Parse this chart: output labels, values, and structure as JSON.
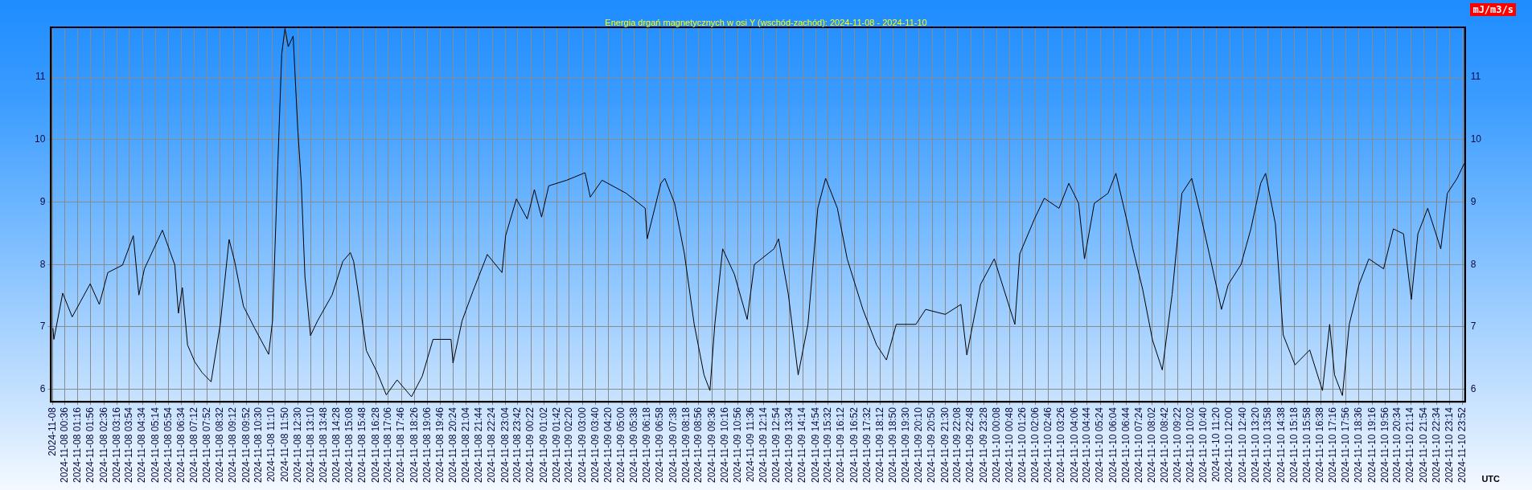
{
  "chart_data": {
    "type": "line",
    "title": "Energia drgań magnetycznych w osi Y (wschód-zachód): 2024-11-08 - 2024-11-10",
    "y2label": "mJ/m3/s",
    "xlabel": "UTC",
    "x": [
      "2024-11-08T00:00",
      "2024-11-08T00:03",
      "2024-11-08T00:30",
      "2024-11-08T00:59",
      "2024-11-08T01:54",
      "2024-11-08T02:22",
      "2024-11-08T02:48",
      "2024-11-08T03:33",
      "2024-11-08T04:06",
      "2024-11-08T04:23",
      "2024-11-08T04:40",
      "2024-11-08T05:35",
      "2024-11-08T06:13",
      "2024-11-08T06:24",
      "2024-11-08T06:36",
      "2024-11-08T06:52",
      "2024-11-08T07:14",
      "2024-11-08T07:36",
      "2024-11-08T08:04",
      "2024-11-08T08:32",
      "2024-11-08T08:59",
      "2024-11-08T09:16",
      "2024-11-08T09:43",
      "2024-11-08T10:17",
      "2024-11-08T11:00",
      "2024-11-08T11:12",
      "2024-11-08T11:28",
      "2024-11-08T11:40",
      "2024-11-08T11:50",
      "2024-11-08T12:00",
      "2024-11-08T12:15",
      "2024-11-08T12:29",
      "2024-11-08T12:40",
      "2024-11-08T12:51",
      "2024-11-08T13:08",
      "2024-11-08T13:30",
      "2024-11-08T14:14",
      "2024-11-08T14:47",
      "2024-11-08T15:10",
      "2024-11-08T15:20",
      "2024-11-08T15:37",
      "2024-11-08T15:59",
      "2024-11-08T16:32",
      "2024-11-08T17:00",
      "2024-11-08T17:33",
      "2024-11-08T18:17",
      "2024-11-08T18:50",
      "2024-11-08T19:23",
      "2024-11-08T20:18",
      "2024-11-08T20:24",
      "2024-11-08T20:52",
      "2024-11-08T21:25",
      "2024-11-08T22:09",
      "2024-11-08T22:54",
      "2024-11-08T23:05",
      "2024-11-08T23:38",
      "2024-11-09T00:11",
      "2024-11-09T00:33",
      "2024-11-09T00:55",
      "2024-11-09T01:17",
      "2024-11-09T02:12",
      "2024-11-09T03:08",
      "2024-11-09T03:24",
      "2024-11-09T04:00",
      "2024-11-09T05:14",
      "2024-11-09T06:12",
      "2024-11-09T06:18",
      "2024-11-09T07:00",
      "2024-11-09T07:12",
      "2024-11-09T07:42",
      "2024-11-09T08:12",
      "2024-11-09T08:42",
      "2024-11-09T09:12",
      "2024-11-09T09:30",
      "2024-11-09T09:45",
      "2024-11-09T10:09",
      "2024-11-09T10:45",
      "2024-11-09T11:24",
      "2024-11-09T11:46",
      "2024-11-09T12:46",
      "2024-11-09T13:00",
      "2024-11-09T13:30",
      "2024-11-09T14:00",
      "2024-11-09T14:30",
      "2024-11-09T15:00",
      "2024-11-09T15:24",
      "2024-11-09T16:00",
      "2024-11-09T16:30",
      "2024-11-09T17:18",
      "2024-11-09T18:00",
      "2024-11-09T18:30",
      "2024-11-09T19:00",
      "2024-11-09T20:00",
      "2024-11-09T20:30",
      "2024-11-09T21:30",
      "2024-11-09T22:18",
      "2024-11-09T22:36",
      "2024-11-09T23:18",
      "2024-11-10T00:00",
      "2024-11-10T01:03",
      "2024-11-10T01:18",
      "2024-11-10T02:03",
      "2024-11-10T02:33",
      "2024-11-10T03:18",
      "2024-11-10T03:48",
      "2024-11-10T04:18",
      "2024-11-10T04:36",
      "2024-11-10T05:06",
      "2024-11-10T05:48",
      "2024-11-10T06:12",
      "2024-11-10T06:48",
      "2024-11-10T07:04",
      "2024-11-10T07:34",
      "2024-11-10T08:04",
      "2024-11-10T08:34",
      "2024-11-10T09:04",
      "2024-11-10T09:34",
      "2024-11-10T10:04",
      "2024-11-10T10:34",
      "2024-11-10T11:05",
      "2024-11-10T11:35",
      "2024-11-10T11:56",
      "2024-11-10T12:35",
      "2024-11-10T13:05",
      "2024-11-10T13:35",
      "2024-11-10T13:50",
      "2024-11-10T14:20",
      "2024-11-10T14:44",
      "2024-11-10T15:20",
      "2024-11-10T16:05",
      "2024-11-10T16:44",
      "2024-11-10T17:06",
      "2024-11-10T17:21",
      "2024-11-10T17:45",
      "2024-11-10T18:06",
      "2024-11-10T18:36",
      "2024-11-10T19:06",
      "2024-11-10T19:51",
      "2024-11-10T20:21",
      "2024-11-10T20:52",
      "2024-11-10T21:16",
      "2024-11-10T21:36",
      "2024-11-10T22:06",
      "2024-11-10T22:46",
      "2024-11-10T23:06",
      "2024-11-10T23:36",
      "2024-11-10T23:58"
    ],
    "series": [
      {
        "color": "#000000",
        "values": [
          6.98,
          6.8,
          7.54,
          7.16,
          7.69,
          7.36,
          7.87,
          7.99,
          8.46,
          7.51,
          7.93,
          8.55,
          7.99,
          7.22,
          7.63,
          6.71,
          6.44,
          6.27,
          6.12,
          7.04,
          8.4,
          8.05,
          7.33,
          6.98,
          6.56,
          7.1,
          9.59,
          11.37,
          11.78,
          11.49,
          11.66,
          10.18,
          9.29,
          7.81,
          6.86,
          7.1,
          7.51,
          8.05,
          8.19,
          8.05,
          7.45,
          6.62,
          6.27,
          5.91,
          6.15,
          5.88,
          6.21,
          6.8,
          6.8,
          6.42,
          7.1,
          7.57,
          8.16,
          7.87,
          8.46,
          9.05,
          8.73,
          9.2,
          8.76,
          9.26,
          9.35,
          9.47,
          9.08,
          9.35,
          9.14,
          8.9,
          8.41,
          9.3,
          9.38,
          8.98,
          8.17,
          7.04,
          6.23,
          5.98,
          7.04,
          8.25,
          7.84,
          7.12,
          8.0,
          8.25,
          8.41,
          7.52,
          6.23,
          7.04,
          8.9,
          9.38,
          8.9,
          8.09,
          7.28,
          6.71,
          6.47,
          7.04,
          7.04,
          7.28,
          7.2,
          7.36,
          6.55,
          7.68,
          8.09,
          7.04,
          8.17,
          8.73,
          9.06,
          8.9,
          9.3,
          8.98,
          8.09,
          8.98,
          9.14,
          9.46,
          8.65,
          8.25,
          7.6,
          6.79,
          6.31,
          7.52,
          9.14,
          9.38,
          8.73,
          8.0,
          7.28,
          7.68,
          8.0,
          8.57,
          9.3,
          9.46,
          8.65,
          6.87,
          6.39,
          6.63,
          5.98,
          7.04,
          6.23,
          5.9,
          7.04,
          7.68,
          8.09,
          7.93,
          8.57,
          8.49,
          7.44,
          8.49,
          8.9,
          8.25,
          9.14,
          9.38,
          9.62
        ]
      }
    ],
    "xlim": [
      "2024-11-07T23:54",
      "2024-11-11T00:00"
    ],
    "xticks": [
      {
        "value": "2024-11-08T00:00",
        "label": "2024-11-08"
      },
      {
        "value": "2024-11-08T00:36",
        "label": "2024-11-08 00:36"
      },
      {
        "value": "2024-11-08T01:16",
        "label": "2024-11-08 01:16"
      },
      {
        "value": "2024-11-08T01:56",
        "label": "2024-11-08 01:56"
      },
      {
        "value": "2024-11-08T02:36",
        "label": "2024-11-08 02:36"
      },
      {
        "value": "2024-11-08T03:16",
        "label": "2024-11-08 03:16"
      },
      {
        "value": "2024-11-08T03:54",
        "label": "2024-11-08 03:54"
      },
      {
        "value": "2024-11-08T04:34",
        "label": "2024-11-08 04:34"
      },
      {
        "value": "2024-11-08T05:14",
        "label": "2024-11-08 05:14"
      },
      {
        "value": "2024-11-08T05:54",
        "label": "2024-11-08 05:54"
      },
      {
        "value": "2024-11-08T06:34",
        "label": "2024-11-08 06:34"
      },
      {
        "value": "2024-11-08T07:12",
        "label": "2024-11-08 07:12"
      },
      {
        "value": "2024-11-08T07:52",
        "label": "2024-11-08 07:52"
      },
      {
        "value": "2024-11-08T08:32",
        "label": "2024-11-08 08:32"
      },
      {
        "value": "2024-11-08T09:12",
        "label": "2024-11-08 09:12"
      },
      {
        "value": "2024-11-08T09:52",
        "label": "2024-11-08 09:52"
      },
      {
        "value": "2024-11-08T10:30",
        "label": "2024-11-08 10:30"
      },
      {
        "value": "2024-11-08T11:10",
        "label": "2024-11-08 11:10"
      },
      {
        "value": "2024-11-08T11:50",
        "label": "2024-11-08 11:50"
      },
      {
        "value": "2024-11-08T12:30",
        "label": "2024-11-08 12:30"
      },
      {
        "value": "2024-11-08T13:10",
        "label": "2024-11-08 13:10"
      },
      {
        "value": "2024-11-08T13:48",
        "label": "2024-11-08 13:48"
      },
      {
        "value": "2024-11-08T14:28",
        "label": "2024-11-08 14:28"
      },
      {
        "value": "2024-11-08T15:08",
        "label": "2024-11-08 15:08"
      },
      {
        "value": "2024-11-08T15:48",
        "label": "2024-11-08 15:48"
      },
      {
        "value": "2024-11-08T16:28",
        "label": "2024-11-08 16:28"
      },
      {
        "value": "2024-11-08T17:06",
        "label": "2024-11-08 17:06"
      },
      {
        "value": "2024-11-08T17:46",
        "label": "2024-11-08 17:46"
      },
      {
        "value": "2024-11-08T18:26",
        "label": "2024-11-08 18:26"
      },
      {
        "value": "2024-11-08T19:06",
        "label": "2024-11-08 19:06"
      },
      {
        "value": "2024-11-08T19:46",
        "label": "2024-11-08 19:46"
      },
      {
        "value": "2024-11-08T20:24",
        "label": "2024-11-08 20:24"
      },
      {
        "value": "2024-11-08T21:04",
        "label": "2024-11-08 21:04"
      },
      {
        "value": "2024-11-08T21:44",
        "label": "2024-11-08 21:44"
      },
      {
        "value": "2024-11-08T22:24",
        "label": "2024-11-08 22:24"
      },
      {
        "value": "2024-11-08T23:04",
        "label": "2024-11-08 23:04"
      },
      {
        "value": "2024-11-08T23:42",
        "label": "2024-11-08 23:42"
      },
      {
        "value": "2024-11-09T00:22",
        "label": "2024-11-09 00:22"
      },
      {
        "value": "2024-11-09T01:02",
        "label": "2024-11-09 01:02"
      },
      {
        "value": "2024-11-09T01:42",
        "label": "2024-11-09 01:42"
      },
      {
        "value": "2024-11-09T02:20",
        "label": "2024-11-09 02:20"
      },
      {
        "value": "2024-11-09T03:00",
        "label": "2024-11-09 03:00"
      },
      {
        "value": "2024-11-09T03:40",
        "label": "2024-11-09 03:40"
      },
      {
        "value": "2024-11-09T04:20",
        "label": "2024-11-09 04:20"
      },
      {
        "value": "2024-11-09T05:00",
        "label": "2024-11-09 05:00"
      },
      {
        "value": "2024-11-09T05:38",
        "label": "2024-11-09 05:38"
      },
      {
        "value": "2024-11-09T06:18",
        "label": "2024-11-09 06:18"
      },
      {
        "value": "2024-11-09T06:58",
        "label": "2024-11-09 06:58"
      },
      {
        "value": "2024-11-09T07:38",
        "label": "2024-11-09 07:38"
      },
      {
        "value": "2024-11-09T08:18",
        "label": "2024-11-09 08:18"
      },
      {
        "value": "2024-11-09T08:56",
        "label": "2024-11-09 08:56"
      },
      {
        "value": "2024-11-09T09:36",
        "label": "2024-11-09 09:36"
      },
      {
        "value": "2024-11-09T10:16",
        "label": "2024-11-09 10:16"
      },
      {
        "value": "2024-11-09T10:56",
        "label": "2024-11-09 10:56"
      },
      {
        "value": "2024-11-09T11:36",
        "label": "2024-11-09 11:36"
      },
      {
        "value": "2024-11-09T12:14",
        "label": "2024-11-09 12:14"
      },
      {
        "value": "2024-11-09T12:54",
        "label": "2024-11-09 12:54"
      },
      {
        "value": "2024-11-09T13:34",
        "label": "2024-11-09 13:34"
      },
      {
        "value": "2024-11-09T14:14",
        "label": "2024-11-09 14:14"
      },
      {
        "value": "2024-11-09T14:54",
        "label": "2024-11-09 14:54"
      },
      {
        "value": "2024-11-09T15:32",
        "label": "2024-11-09 15:32"
      },
      {
        "value": "2024-11-09T16:12",
        "label": "2024-11-09 16:12"
      },
      {
        "value": "2024-11-09T16:52",
        "label": "2024-11-09 16:52"
      },
      {
        "value": "2024-11-09T17:32",
        "label": "2024-11-09 17:32"
      },
      {
        "value": "2024-11-09T18:12",
        "label": "2024-11-09 18:12"
      },
      {
        "value": "2024-11-09T18:50",
        "label": "2024-11-09 18:50"
      },
      {
        "value": "2024-11-09T19:30",
        "label": "2024-11-09 19:30"
      },
      {
        "value": "2024-11-09T20:10",
        "label": "2024-11-09 20:10"
      },
      {
        "value": "2024-11-09T20:50",
        "label": "2024-11-09 20:50"
      },
      {
        "value": "2024-11-09T21:30",
        "label": "2024-11-09 21:30"
      },
      {
        "value": "2024-11-09T22:08",
        "label": "2024-11-09 22:08"
      },
      {
        "value": "2024-11-09T22:48",
        "label": "2024-11-09 22:48"
      },
      {
        "value": "2024-11-09T23:28",
        "label": "2024-11-09 23:28"
      },
      {
        "value": "2024-11-10T00:08",
        "label": "2024-11-10 00:08"
      },
      {
        "value": "2024-11-10T00:48",
        "label": "2024-11-10 00:48"
      },
      {
        "value": "2024-11-10T01:26",
        "label": "2024-11-10 01:26"
      },
      {
        "value": "2024-11-10T02:06",
        "label": "2024-11-10 02:06"
      },
      {
        "value": "2024-11-10T02:46",
        "label": "2024-11-10 02:46"
      },
      {
        "value": "2024-11-10T03:26",
        "label": "2024-11-10 03:26"
      },
      {
        "value": "2024-11-10T04:06",
        "label": "2024-11-10 04:06"
      },
      {
        "value": "2024-11-10T04:44",
        "label": "2024-11-10 04:44"
      },
      {
        "value": "2024-11-10T05:24",
        "label": "2024-11-10 05:24"
      },
      {
        "value": "2024-11-10T06:04",
        "label": "2024-11-10 06:04"
      },
      {
        "value": "2024-11-10T06:44",
        "label": "2024-11-10 06:44"
      },
      {
        "value": "2024-11-10T07:24",
        "label": "2024-11-10 07:24"
      },
      {
        "value": "2024-11-10T08:02",
        "label": "2024-11-10 08:02"
      },
      {
        "value": "2024-11-10T08:42",
        "label": "2024-11-10 08:42"
      },
      {
        "value": "2024-11-10T09:22",
        "label": "2024-11-10 09:22"
      },
      {
        "value": "2024-11-10T10:02",
        "label": "2024-11-10 10:02"
      },
      {
        "value": "2024-11-10T10:40",
        "label": "2024-11-10 10:40"
      },
      {
        "value": "2024-11-10T11:20",
        "label": "2024-11-10 11:20"
      },
      {
        "value": "2024-11-10T12:00",
        "label": "2024-11-10 12:00"
      },
      {
        "value": "2024-11-10T12:40",
        "label": "2024-11-10 12:40"
      },
      {
        "value": "2024-11-10T13:20",
        "label": "2024-11-10 13:20"
      },
      {
        "value": "2024-11-10T13:58",
        "label": "2024-11-10 13:58"
      },
      {
        "value": "2024-11-10T14:38",
        "label": "2024-11-10 14:38"
      },
      {
        "value": "2024-11-10T15:18",
        "label": "2024-11-10 15:18"
      },
      {
        "value": "2024-11-10T15:58",
        "label": "2024-11-10 15:58"
      },
      {
        "value": "2024-11-10T16:38",
        "label": "2024-11-10 16:38"
      },
      {
        "value": "2024-11-10T17:16",
        "label": "2024-11-10 17:16"
      },
      {
        "value": "2024-11-10T17:56",
        "label": "2024-11-10 17:56"
      },
      {
        "value": "2024-11-10T18:36",
        "label": "2024-11-10 18:36"
      },
      {
        "value": "2024-11-10T19:16",
        "label": "2024-11-10 19:16"
      },
      {
        "value": "2024-11-10T19:56",
        "label": "2024-11-10 19:56"
      },
      {
        "value": "2024-11-10T20:34",
        "label": "2024-11-10 20:34"
      },
      {
        "value": "2024-11-10T21:14",
        "label": "2024-11-10 21:14"
      },
      {
        "value": "2024-11-10T21:54",
        "label": "2024-11-10 21:54"
      },
      {
        "value": "2024-11-10T22:34",
        "label": "2024-11-10 22:34"
      },
      {
        "value": "2024-11-10T23:14",
        "label": "2024-11-10 23:14"
      },
      {
        "value": "2024-11-10T23:52",
        "label": "2024-11-10 23:52"
      }
    ],
    "ylim": [
      5.8,
      11.8
    ],
    "yticks": [
      6,
      7,
      8,
      9,
      10,
      11
    ],
    "y2lim": [
      5.8,
      11.8
    ],
    "y2ticks": [
      6,
      7,
      8,
      9,
      10,
      11
    ],
    "grid": true,
    "legend": false,
    "marker": "none",
    "line_style": "solid"
  }
}
